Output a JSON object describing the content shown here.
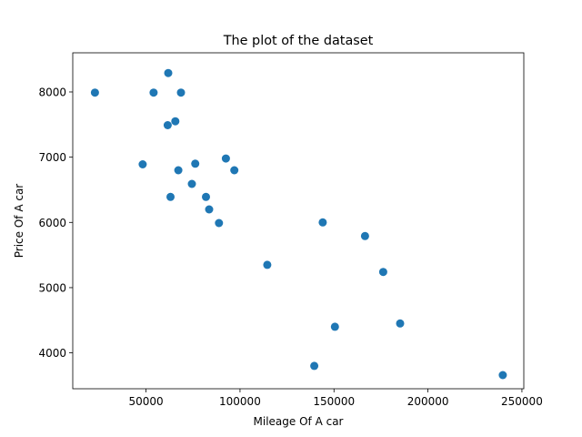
{
  "chart_data": {
    "type": "scatter",
    "title": "The plot of the dataset",
    "xlabel": "Mileage Of A car",
    "ylabel": "Price Of A car",
    "xlim": [
      11000,
      251000
    ],
    "ylim": [
      3450,
      8600
    ],
    "xticks": [
      {
        "value": 50000,
        "label": "50000"
      },
      {
        "value": 100000,
        "label": "100000"
      },
      {
        "value": 150000,
        "label": "150000"
      },
      {
        "value": 200000,
        "label": "200000"
      },
      {
        "value": 250000,
        "label": "250000"
      }
    ],
    "yticks": [
      {
        "value": 4000,
        "label": "4000"
      },
      {
        "value": 5000,
        "label": "5000"
      },
      {
        "value": 6000,
        "label": "6000"
      },
      {
        "value": 7000,
        "label": "7000"
      },
      {
        "value": 8000,
        "label": "8000"
      }
    ],
    "grid": false,
    "marker_color": "#1f77b4",
    "points": [
      {
        "x": 22800,
        "y": 7990
      },
      {
        "x": 48200,
        "y": 6890
      },
      {
        "x": 54000,
        "y": 7990
      },
      {
        "x": 61500,
        "y": 7490
      },
      {
        "x": 61800,
        "y": 8290
      },
      {
        "x": 63000,
        "y": 6390
      },
      {
        "x": 65600,
        "y": 7550
      },
      {
        "x": 67200,
        "y": 6800
      },
      {
        "x": 68600,
        "y": 7990
      },
      {
        "x": 74400,
        "y": 6590
      },
      {
        "x": 76200,
        "y": 6900
      },
      {
        "x": 81900,
        "y": 6390
      },
      {
        "x": 83600,
        "y": 6200
      },
      {
        "x": 88800,
        "y": 5990
      },
      {
        "x": 92500,
        "y": 6980
      },
      {
        "x": 97000,
        "y": 6800
      },
      {
        "x": 114500,
        "y": 5350
      },
      {
        "x": 139500,
        "y": 3800
      },
      {
        "x": 144000,
        "y": 6000
      },
      {
        "x": 150500,
        "y": 4400
      },
      {
        "x": 166500,
        "y": 5790
      },
      {
        "x": 176200,
        "y": 5240
      },
      {
        "x": 185200,
        "y": 4450
      },
      {
        "x": 239800,
        "y": 3660
      }
    ]
  }
}
